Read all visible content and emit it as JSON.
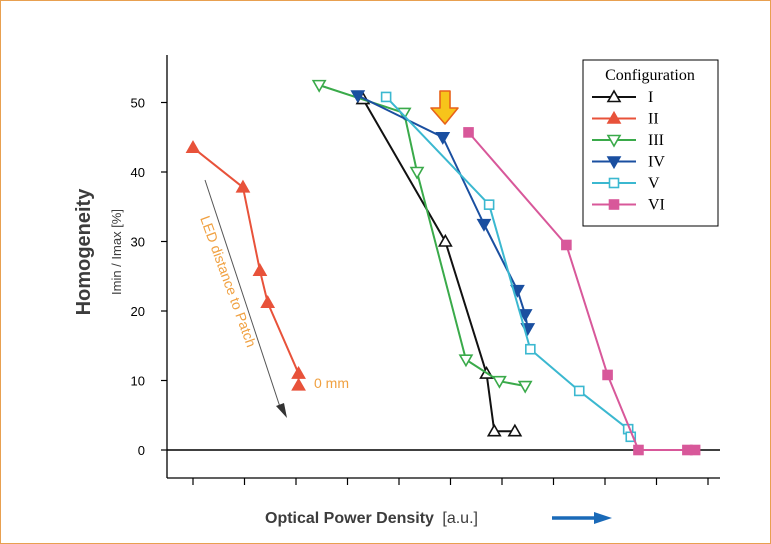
{
  "chart_data": {
    "type": "line",
    "xlabel": "Optical Power Density",
    "xlabel_unit": "[a.u.]",
    "ylabel": "Homogeneity",
    "ylabel_sub": "Imin / Imax [%]",
    "ylim": [
      -4,
      57
    ],
    "xlim": [
      0,
      10.4
    ],
    "y_ticks": [
      0,
      10,
      20,
      30,
      40,
      50
    ],
    "x_tick_count": 11,
    "show_x_tick_labels": false,
    "legend": {
      "title": "Configuration",
      "placement": "top-right"
    },
    "series": [
      {
        "name": "I",
        "color": "#111111",
        "marker": "triangle-up-open",
        "x": [
          3.3,
          4.9,
          5.7,
          5.85,
          6.25
        ],
        "y": [
          50.5,
          30,
          11,
          2.7,
          2.7
        ]
      },
      {
        "name": "II",
        "color": "#e8523a",
        "marker": "triangle-up-filled",
        "x": [
          0.0,
          0.97,
          1.3,
          1.45,
          2.05,
          2.05
        ],
        "y": [
          43.5,
          37.8,
          25.8,
          21.2,
          11,
          9.3
        ]
      },
      {
        "name": "III",
        "color": "#3aaa4a",
        "marker": "triangle-down-open",
        "x": [
          2.45,
          4.1,
          4.35,
          5.3,
          5.95,
          6.45
        ],
        "y": [
          52.5,
          48.5,
          40,
          13,
          9.9,
          9.2
        ]
      },
      {
        "name": "IV",
        "color": "#1a4fa0",
        "marker": "triangle-down-filled",
        "x": [
          3.2,
          4.85,
          5.65,
          6.3,
          6.45,
          6.5
        ],
        "y": [
          51,
          45,
          32.5,
          23,
          19.5,
          17.5
        ]
      },
      {
        "name": "V",
        "color": "#3bb8d0",
        "marker": "square-open",
        "x": [
          3.75,
          5.75,
          6.55,
          7.5,
          8.45,
          8.5
        ],
        "y": [
          50.8,
          35.3,
          14.5,
          8.5,
          3,
          1.9
        ]
      },
      {
        "name": "VI",
        "color": "#d8589a",
        "marker": "square-filled",
        "x": [
          5.35,
          7.25,
          8.05,
          8.65,
          9.6,
          9.75
        ],
        "y": [
          45.7,
          29.5,
          10.8,
          0,
          0,
          0
        ]
      }
    ],
    "annotations": {
      "arrow_text": "LED distance to Patch",
      "arrow_text_color": "#f0a040",
      "end_label": "0 mm",
      "end_label_color": "#f0a040"
    }
  }
}
